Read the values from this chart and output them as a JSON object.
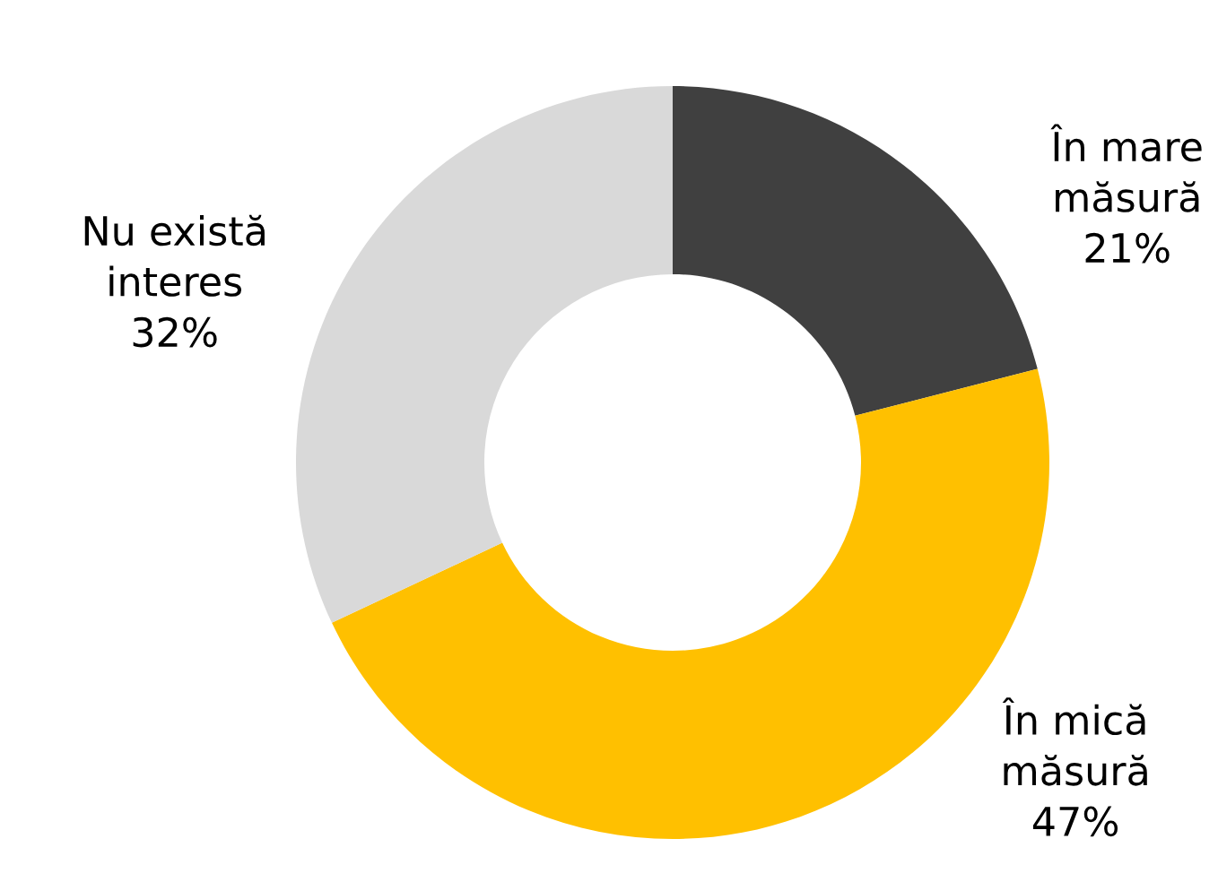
{
  "chart_data": {
    "type": "donut",
    "categories": [
      "În mare măsură",
      "În mică măsură",
      "Nu există interes"
    ],
    "values": [
      21,
      47,
      32
    ],
    "colors": [
      "#404040",
      "#ffc000",
      "#d9d9d9"
    ],
    "value_labels": [
      "21%",
      "47%",
      "32%"
    ]
  }
}
